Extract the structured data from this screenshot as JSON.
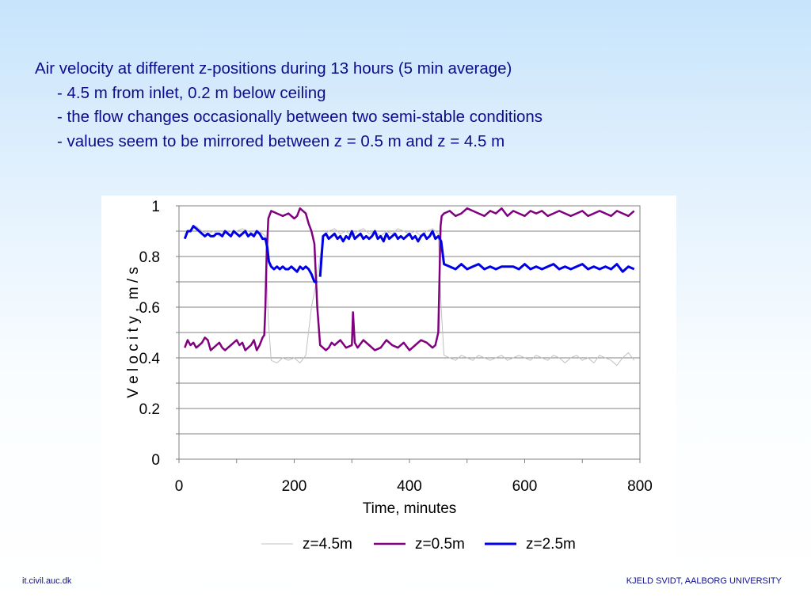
{
  "slide": {
    "lines": [
      "Air velocity at different z-positions during 13 hours (5 min average)",
      "- 4.5 m from inlet, 0.2 m below ceiling",
      "- the flow changes occasionally between two semi-stable conditions",
      "- values seem to be mirrored between z = 0.5 m and z = 4.5 m"
    ]
  },
  "footer": {
    "left": "it.civil.auc.dk",
    "right": "KJELD SVIDT, AALBORG UNIVERSITY"
  },
  "chart_data": {
    "type": "line",
    "xlabel": "Time, minutes",
    "ylabel": "V e l o c i t y ,  m / s",
    "xlim": [
      0,
      800
    ],
    "ylim": [
      0,
      1
    ],
    "xticks": [
      0,
      200,
      400,
      600,
      800
    ],
    "xtick_labels": [
      "0",
      "200",
      "400",
      "600",
      "800"
    ],
    "yticks": [
      0,
      0.2,
      0.4,
      0.6,
      0.8,
      1
    ],
    "ytick_labels": [
      "0",
      "0.2",
      "0.4",
      "0.6",
      "0.8",
      "1"
    ],
    "grid": "horizontal",
    "legend": "bottom",
    "series": [
      {
        "name": "z=4.5m",
        "color": "#c0c0c0",
        "x": [
          10,
          20,
          30,
          40,
          50,
          60,
          70,
          80,
          90,
          100,
          110,
          120,
          130,
          140,
          150,
          155,
          160,
          170,
          180,
          190,
          200,
          210,
          220,
          230,
          240,
          250,
          260,
          270,
          280,
          290,
          300,
          310,
          320,
          330,
          340,
          350,
          360,
          370,
          380,
          390,
          400,
          410,
          420,
          430,
          440,
          450,
          455,
          460,
          470,
          480,
          490,
          500,
          510,
          520,
          530,
          540,
          550,
          560,
          570,
          580,
          590,
          600,
          610,
          620,
          630,
          640,
          650,
          660,
          670,
          680,
          690,
          700,
          710,
          720,
          730,
          740,
          750,
          760,
          770,
          780,
          790
        ],
        "values": [
          0.89,
          0.9,
          0.92,
          0.9,
          0.89,
          0.9,
          0.88,
          0.89,
          0.9,
          0.9,
          0.91,
          0.9,
          0.89,
          0.9,
          0.88,
          0.55,
          0.39,
          0.38,
          0.4,
          0.39,
          0.4,
          0.38,
          0.41,
          0.6,
          0.72,
          0.88,
          0.9,
          0.91,
          0.89,
          0.9,
          0.88,
          0.9,
          0.91,
          0.89,
          0.9,
          0.88,
          0.9,
          0.89,
          0.91,
          0.9,
          0.89,
          0.9,
          0.88,
          0.9,
          0.91,
          0.89,
          0.6,
          0.41,
          0.4,
          0.39,
          0.41,
          0.4,
          0.39,
          0.41,
          0.4,
          0.39,
          0.4,
          0.41,
          0.39,
          0.4,
          0.41,
          0.4,
          0.39,
          0.41,
          0.4,
          0.39,
          0.41,
          0.4,
          0.38,
          0.4,
          0.41,
          0.39,
          0.4,
          0.38,
          0.41,
          0.4,
          0.39,
          0.37,
          0.4,
          0.42,
          0.39
        ]
      },
      {
        "name": "z=0.5m",
        "color": "#800080",
        "x": [
          10,
          15,
          20,
          25,
          30,
          35,
          40,
          45,
          50,
          55,
          60,
          65,
          70,
          75,
          80,
          85,
          90,
          95,
          100,
          105,
          110,
          115,
          120,
          125,
          130,
          135,
          140,
          145,
          148,
          150,
          152,
          155,
          160,
          170,
          180,
          190,
          200,
          205,
          210,
          220,
          225,
          230,
          235,
          240,
          245,
          250,
          255,
          260,
          265,
          270,
          280,
          290,
          300,
          302,
          305,
          310,
          320,
          330,
          340,
          350,
          360,
          370,
          380,
          390,
          400,
          410,
          420,
          430,
          440,
          445,
          450,
          452,
          454,
          456,
          460,
          470,
          480,
          490,
          500,
          510,
          520,
          530,
          540,
          550,
          560,
          570,
          580,
          590,
          600,
          610,
          620,
          630,
          640,
          650,
          660,
          670,
          680,
          690,
          700,
          710,
          720,
          730,
          740,
          750,
          760,
          770,
          780,
          790
        ],
        "values": [
          0.44,
          0.47,
          0.45,
          0.46,
          0.44,
          0.45,
          0.46,
          0.48,
          0.47,
          0.43,
          0.44,
          0.45,
          0.46,
          0.44,
          0.43,
          0.44,
          0.45,
          0.46,
          0.47,
          0.45,
          0.46,
          0.43,
          0.44,
          0.45,
          0.47,
          0.43,
          0.45,
          0.48,
          0.49,
          0.6,
          0.8,
          0.95,
          0.98,
          0.97,
          0.96,
          0.97,
          0.95,
          0.96,
          0.99,
          0.97,
          0.93,
          0.9,
          0.85,
          0.6,
          0.45,
          0.44,
          0.43,
          0.44,
          0.46,
          0.45,
          0.47,
          0.44,
          0.45,
          0.58,
          0.46,
          0.44,
          0.47,
          0.45,
          0.43,
          0.44,
          0.47,
          0.45,
          0.44,
          0.46,
          0.43,
          0.45,
          0.47,
          0.46,
          0.44,
          0.45,
          0.5,
          0.7,
          0.92,
          0.96,
          0.97,
          0.98,
          0.96,
          0.97,
          0.99,
          0.98,
          0.97,
          0.96,
          0.98,
          0.97,
          0.99,
          0.96,
          0.98,
          0.97,
          0.96,
          0.98,
          0.97,
          0.98,
          0.96,
          0.97,
          0.98,
          0.97,
          0.96,
          0.97,
          0.98,
          0.96,
          0.97,
          0.98,
          0.97,
          0.96,
          0.98,
          0.97,
          0.96,
          0.98
        ]
      },
      {
        "name": "z=2.5m",
        "color": "#0000e6",
        "segments": [
          {
            "x": [
              10,
              15,
              20,
              25,
              30,
              35,
              40,
              45,
              50,
              55,
              60,
              65,
              70,
              75,
              80,
              85,
              90,
              95,
              100,
              105,
              110,
              115,
              120,
              125,
              130,
              135,
              140,
              145,
              150,
              153,
              156,
              160,
              165,
              170,
              175,
              180,
              185,
              190,
              195,
              200,
              205,
              210,
              215,
              220,
              225,
              230,
              235,
              240
            ],
            "values": [
              0.87,
              0.9,
              0.9,
              0.92,
              0.91,
              0.9,
              0.89,
              0.88,
              0.89,
              0.88,
              0.88,
              0.89,
              0.89,
              0.88,
              0.9,
              0.89,
              0.88,
              0.9,
              0.89,
              0.88,
              0.89,
              0.9,
              0.88,
              0.89,
              0.88,
              0.9,
              0.89,
              0.87,
              0.87,
              0.84,
              0.78,
              0.76,
              0.75,
              0.76,
              0.75,
              0.76,
              0.75,
              0.75,
              0.76,
              0.75,
              0.74,
              0.76,
              0.75,
              0.76,
              0.75,
              0.73,
              0.7,
              0.7
            ]
          },
          {
            "x": [
              245,
              250,
              255,
              260,
              265,
              270,
              275,
              280,
              285,
              290,
              295,
              300,
              305,
              310,
              315,
              320,
              325,
              330,
              335,
              340,
              345,
              350,
              355,
              360,
              365,
              370,
              375,
              380,
              385,
              390,
              395,
              400,
              405,
              410,
              415,
              420,
              425,
              430,
              435,
              440,
              445,
              450,
              455,
              460,
              470,
              480,
              490,
              500,
              510,
              520,
              530,
              540,
              550,
              560,
              570,
              580,
              590,
              600,
              610,
              620,
              630,
              640,
              650,
              660,
              670,
              680,
              690,
              700,
              710,
              720,
              730,
              740,
              750,
              760,
              770,
              780,
              790
            ],
            "values": [
              0.72,
              0.88,
              0.89,
              0.87,
              0.88,
              0.89,
              0.87,
              0.88,
              0.86,
              0.88,
              0.87,
              0.9,
              0.87,
              0.88,
              0.89,
              0.87,
              0.88,
              0.87,
              0.88,
              0.9,
              0.87,
              0.88,
              0.86,
              0.89,
              0.87,
              0.88,
              0.89,
              0.87,
              0.88,
              0.87,
              0.88,
              0.89,
              0.87,
              0.88,
              0.86,
              0.88,
              0.89,
              0.87,
              0.88,
              0.9,
              0.87,
              0.88,
              0.86,
              0.77,
              0.76,
              0.75,
              0.77,
              0.75,
              0.76,
              0.77,
              0.75,
              0.76,
              0.75,
              0.76,
              0.76,
              0.76,
              0.75,
              0.77,
              0.75,
              0.76,
              0.75,
              0.76,
              0.77,
              0.75,
              0.76,
              0.75,
              0.76,
              0.77,
              0.75,
              0.76,
              0.75,
              0.76,
              0.75,
              0.77,
              0.74,
              0.76,
              0.75
            ]
          }
        ]
      }
    ]
  }
}
